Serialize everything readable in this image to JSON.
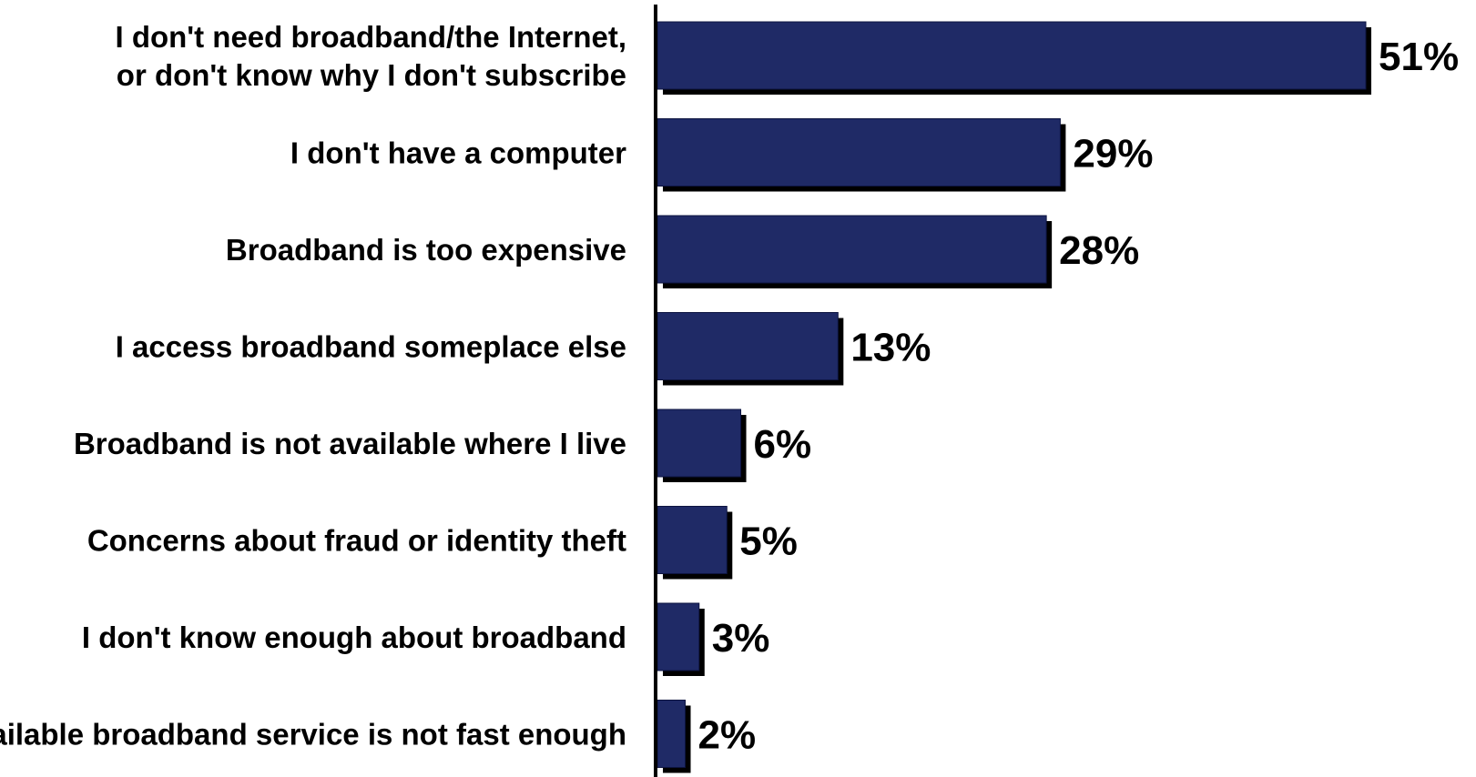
{
  "chart_data": {
    "type": "bar",
    "orientation": "horizontal",
    "categories": [
      [
        "I don't need broadband/the Internet,",
        "or don't know why I don't subscribe"
      ],
      [
        "I don't have a computer"
      ],
      [
        "Broadband is too expensive"
      ],
      [
        "I access broadband someplace else"
      ],
      [
        "Broadband is not available where I live"
      ],
      [
        "Concerns about fraud or identity theft"
      ],
      [
        "I don't know enough about broadband"
      ],
      [
        "Available broadband service is not fast enough"
      ]
    ],
    "values": [
      51,
      29,
      28,
      13,
      6,
      5,
      3,
      2
    ],
    "value_labels": [
      "51%",
      "29%",
      "28%",
      "13%",
      "6%",
      "5%",
      "3%",
      "2%"
    ],
    "xlim": [
      0,
      51
    ],
    "bar_color": "#1f2a66",
    "shadow_color": "#000000",
    "grid": false,
    "legend": "none"
  }
}
